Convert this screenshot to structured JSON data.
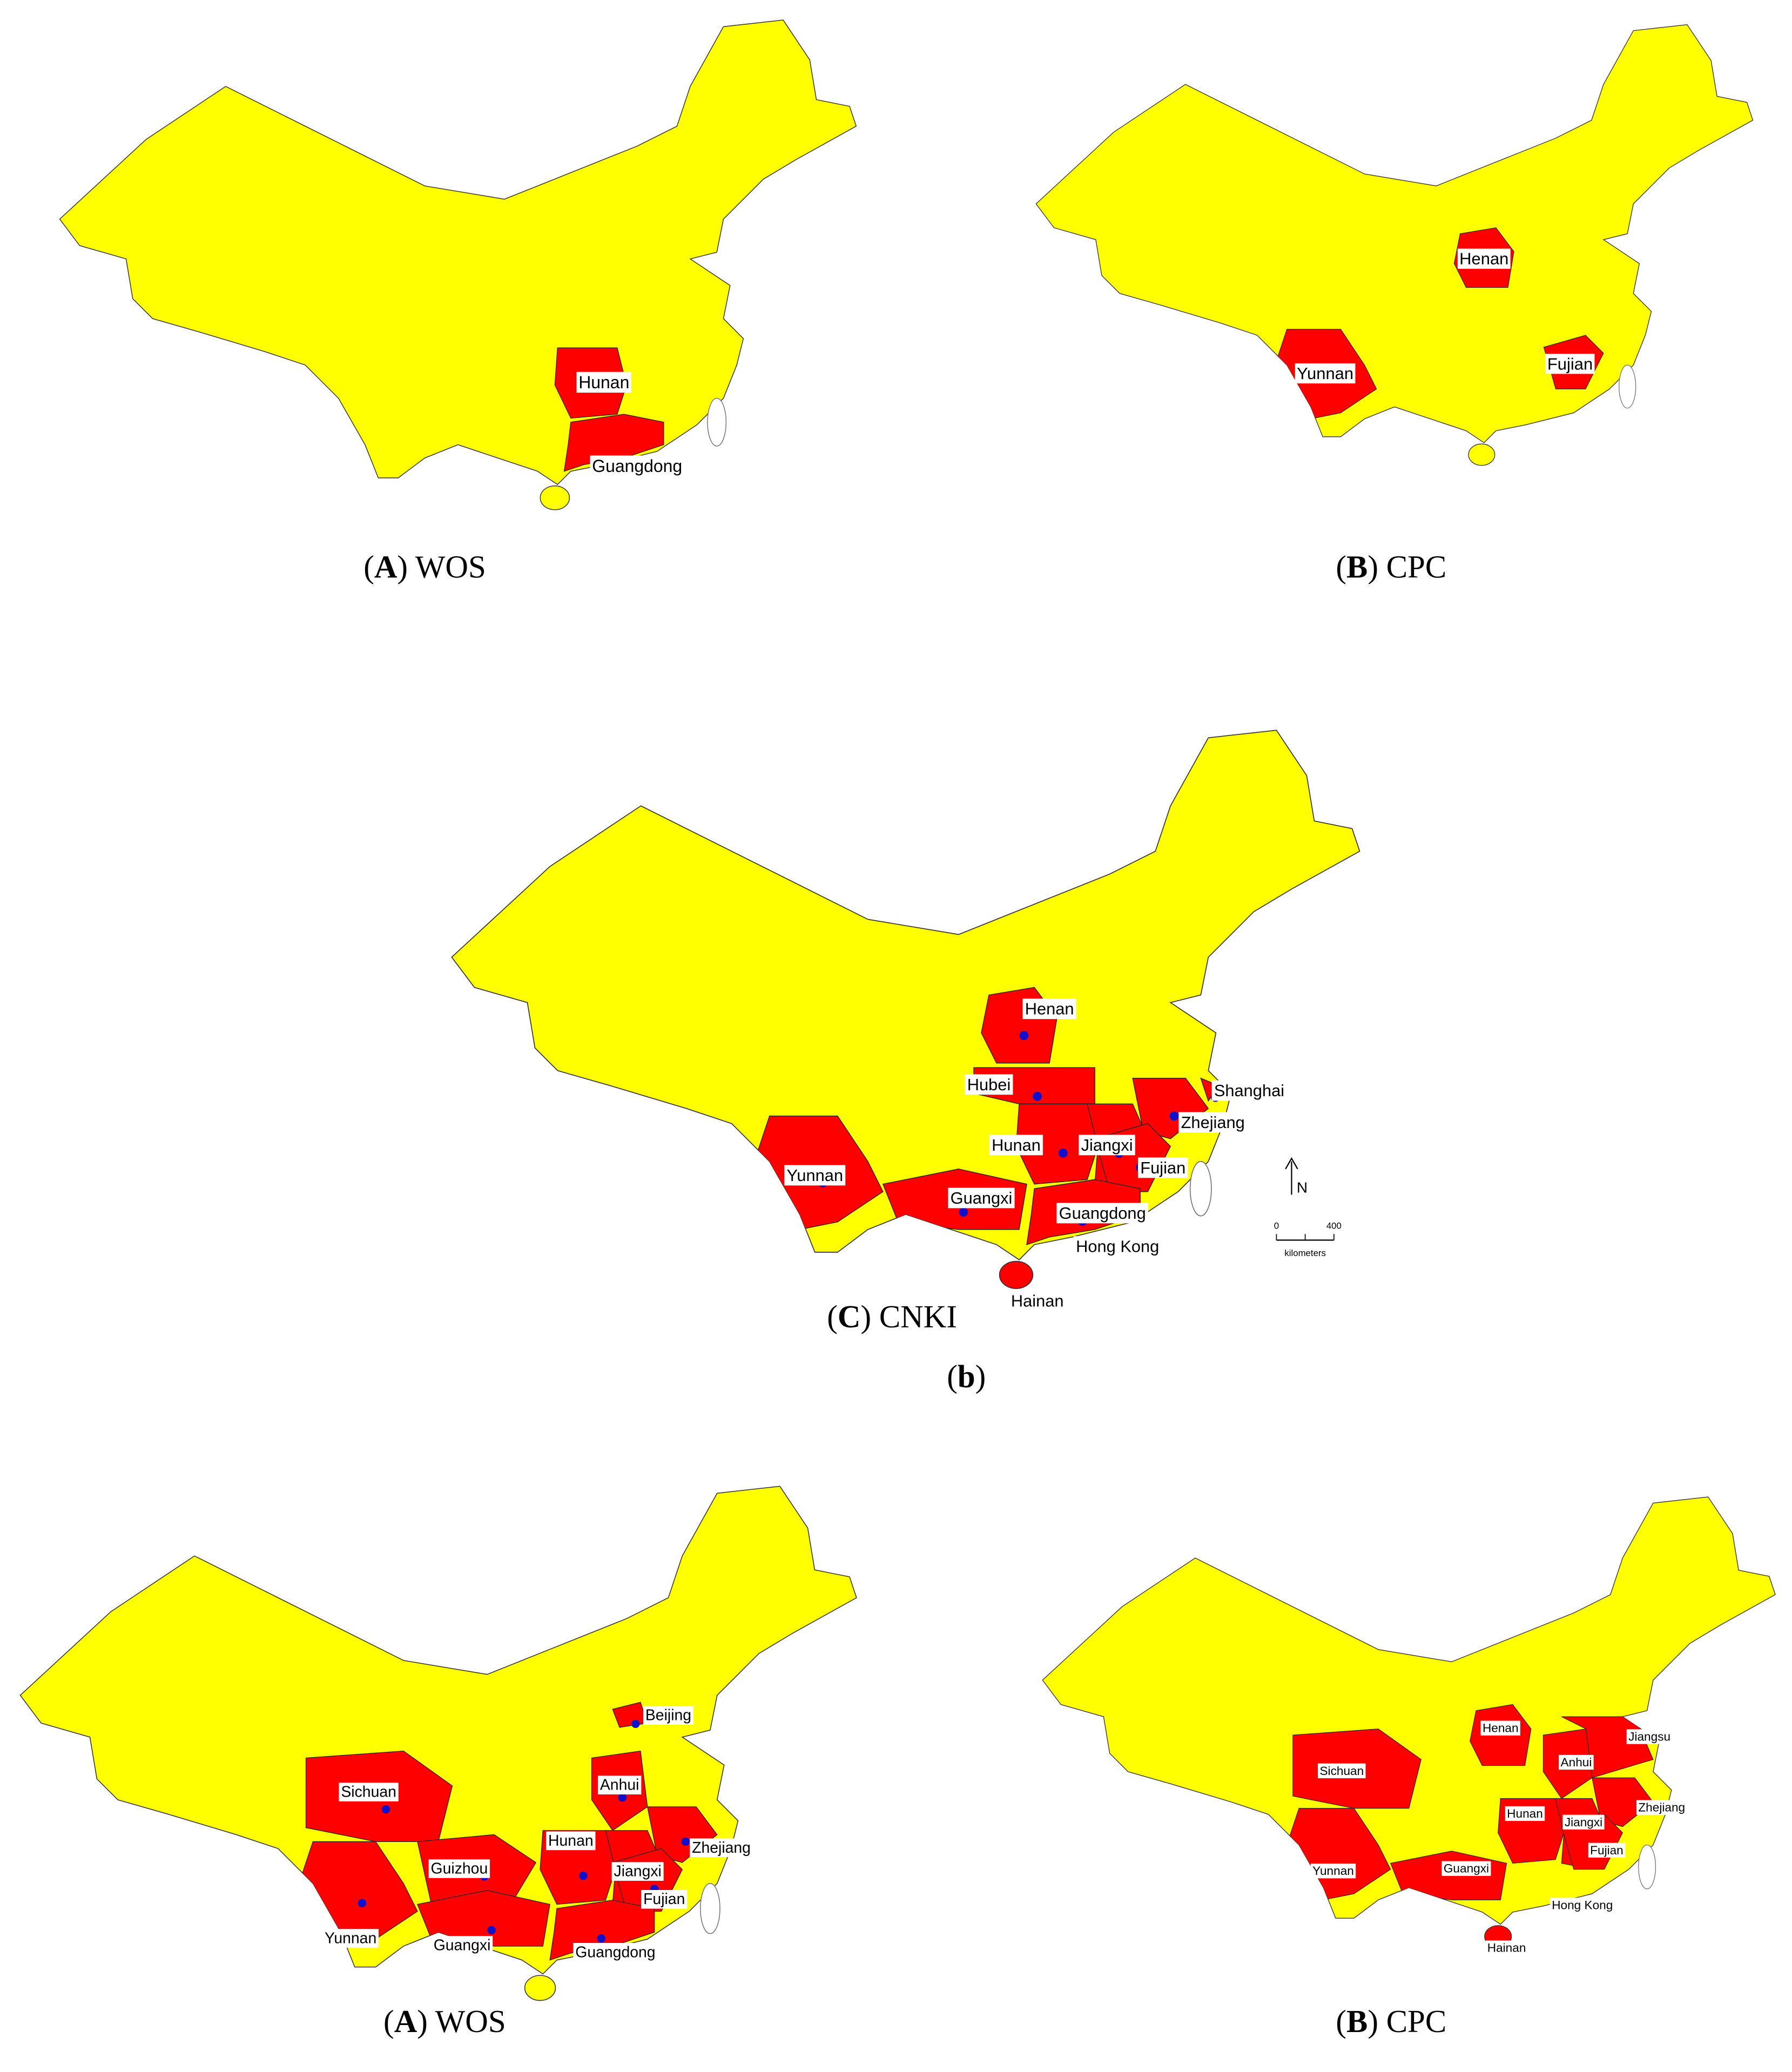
{
  "panels": [
    {
      "caption": [
        "(",
        "A",
        ") WOS"
      ],
      "labels": [
        "Hunan",
        "Guangdong"
      ]
    },
    {
      "caption": [
        "(",
        "B",
        ") CPC"
      ],
      "labels": [
        "Henan",
        "Yunnan",
        "Fujian"
      ]
    },
    {
      "caption": [
        "(",
        "C",
        ") CNKI"
      ],
      "labels": [
        "Henan",
        "Hubei",
        "Shanghai",
        "Zhejiang",
        "Hunan",
        "Jiangxi",
        "Fujian",
        "Yunnan",
        "Guangxi",
        "Guangdong",
        "Hong Kong",
        "Hainan"
      ],
      "north": "N",
      "scale": {
        "ticks": [
          "0",
          "400"
        ],
        "unit": "kilometers"
      }
    },
    {
      "caption": [
        "(",
        "A",
        ") WOS"
      ],
      "labels": [
        "Beijing",
        "Anhui",
        "Sichuan",
        "Hunan",
        "Zhejiang",
        "Guizhou",
        "Jiangxi",
        "Fujian",
        "Yunnan",
        "Guangxi",
        "Guangdong"
      ]
    },
    {
      "caption": [
        "(",
        "B",
        ") CPC"
      ],
      "labels": [
        "Henan",
        "Jiangsu",
        "Anhui",
        "Sichuan",
        "Zhejiang",
        "Hunan",
        "Jiangxi",
        "Yunnan",
        "Fujian",
        "Guangxi",
        "Hong Kong",
        "Hainan"
      ]
    }
  ],
  "section_label": [
    "(",
    "b",
    ")"
  ]
}
